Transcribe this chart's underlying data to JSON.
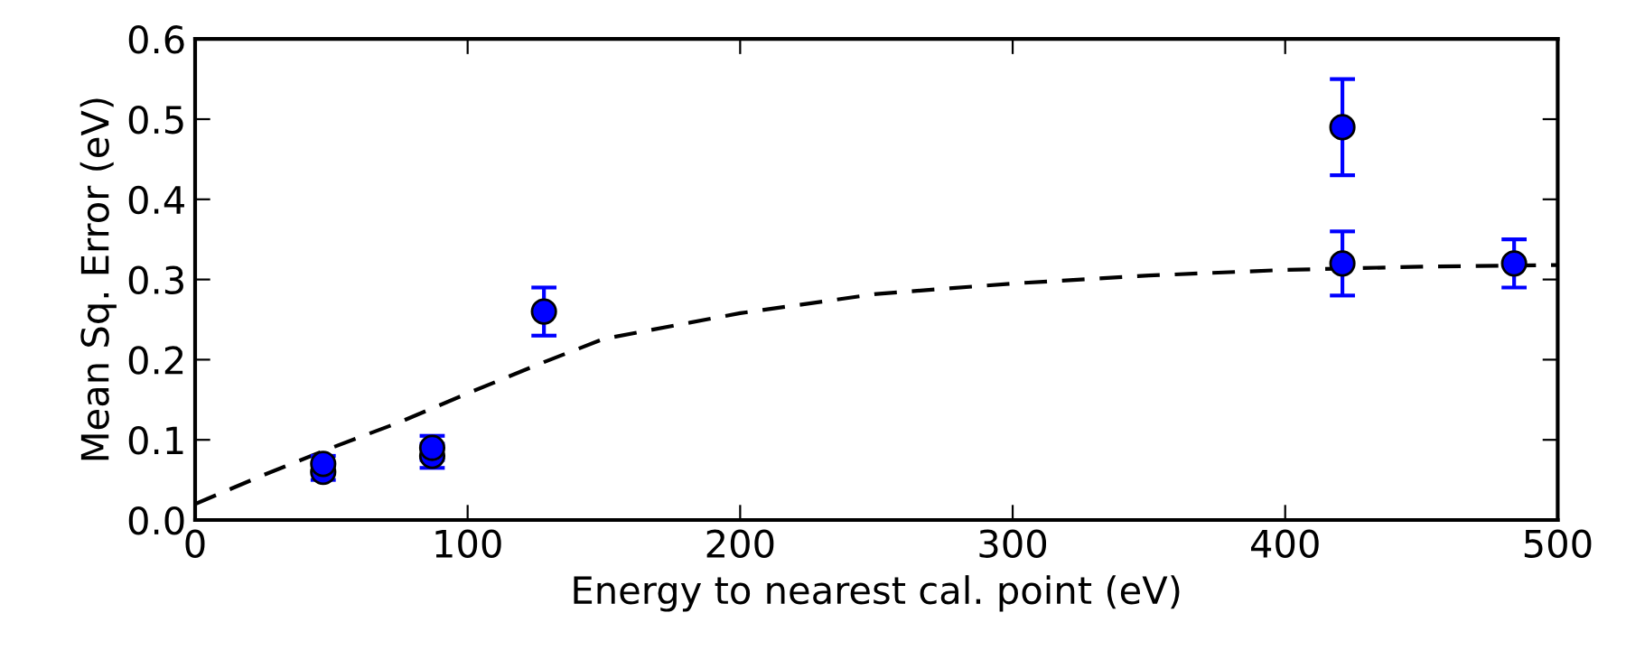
{
  "chart_data": {
    "type": "scatter",
    "xlabel": "Energy to nearest cal. point (eV)",
    "ylabel": "Mean Sq. Error (eV)",
    "xlim": [
      0,
      500
    ],
    "ylim": [
      0.0,
      0.6
    ],
    "xticks": [
      0,
      100,
      200,
      300,
      400,
      500
    ],
    "yticks": [
      {
        "value": 0.0,
        "label": "0.0"
      },
      0.1,
      0.2,
      0.3,
      0.4,
      0.5,
      0.6
    ],
    "grid": false,
    "series": [
      {
        "color": "#0000ff",
        "marker": "circle",
        "x": [
          47,
          47,
          87,
          87,
          128,
          421,
          421,
          484
        ],
        "values": [
          0.06,
          0.07,
          0.08,
          0.09,
          0.26,
          0.49,
          0.32,
          0.32
        ],
        "errors": [
          0.01,
          0.01,
          0.015,
          0.015,
          0.03,
          0.06,
          0.04,
          0.03
        ]
      },
      {
        "type": "line",
        "color": "#000000",
        "line_style": "dashed",
        "marker": "none",
        "x": [
          0,
          25,
          50,
          75,
          100,
          128,
          150,
          200,
          250,
          300,
          350,
          400,
          450,
          500
        ],
        "values": [
          0.02,
          0.056,
          0.09,
          0.122,
          0.158,
          0.197,
          0.226,
          0.258,
          0.282,
          0.295,
          0.305,
          0.312,
          0.316,
          0.318
        ]
      }
    ]
  }
}
